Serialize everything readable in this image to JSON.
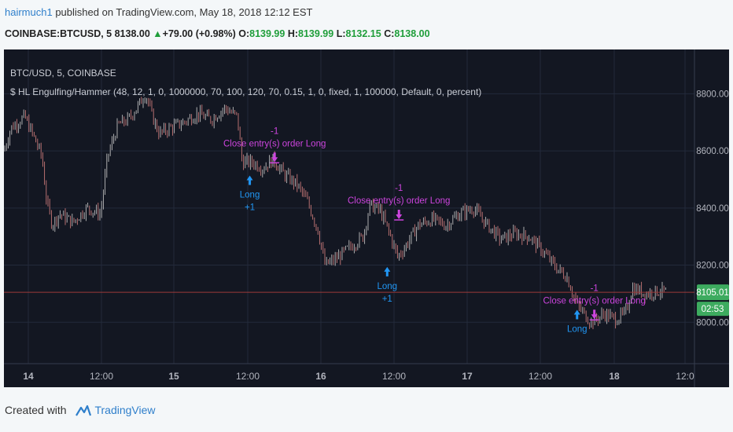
{
  "header": {
    "user": "hairmuch1",
    "published_text": "published on TradingView.com, May 18, 2018 12:12 EST"
  },
  "symbol_bar": {
    "symbol": "COINBASE:BTCUSD, 5",
    "last": "8138.00",
    "change": "+79.00 (+0.98%)",
    "o_label": "O:",
    "o": "8139.99",
    "h_label": "H:",
    "h": "8139.99",
    "l_label": "L:",
    "l": "8132.15",
    "c_label": "C:",
    "c": "8138.00"
  },
  "chart_info": {
    "title": "BTC/USD, 5, COINBASE",
    "indicator": "$ HL Engulfing/Hammer (48, 12, 1, 0, 1000000, 70, 100, 120, 70, 0.15, 1, 0, fixed, 1, 100000, Default, 0, percent)"
  },
  "price_tags": {
    "last": "8105.01",
    "countdown": "02:53"
  },
  "footer": {
    "created_with": "Created with",
    "brand": "TradingView"
  },
  "colors": {
    "background": "#131722",
    "grid": "#232a3b",
    "up": "#bdbdbd",
    "down": "#c87878",
    "long_marker": "#2196f3",
    "close_marker": "#cc44dd",
    "price_line": "#9c3a3a",
    "last_price_tag": "#3dab5f"
  },
  "chart_data": {
    "type": "candlestick",
    "title": "BTC/USD, 5, COINBASE",
    "y_ticks": [
      8000,
      8200,
      8400,
      8600,
      8800
    ],
    "y_tick_labels": [
      "8000.00",
      "8200.00",
      "8400.00",
      "8600.00",
      "8800.00"
    ],
    "ylim": [
      7855,
      8955
    ],
    "x_tick_labels": [
      "14",
      "12:00",
      "15",
      "12:00",
      "16",
      "12:00",
      "17",
      "12:00",
      "18",
      "12:0"
    ],
    "grid": true,
    "price_line": 8105.01,
    "path": [
      {
        "t": 0.0,
        "p": 8600
      },
      {
        "t": 0.01,
        "p": 8680
      },
      {
        "t": 0.03,
        "p": 8720
      },
      {
        "t": 0.045,
        "p": 8640
      },
      {
        "t": 0.055,
        "p": 8580
      },
      {
        "t": 0.062,
        "p": 8420
      },
      {
        "t": 0.07,
        "p": 8340
      },
      {
        "t": 0.08,
        "p": 8380
      },
      {
        "t": 0.1,
        "p": 8350
      },
      {
        "t": 0.12,
        "p": 8400
      },
      {
        "t": 0.14,
        "p": 8380
      },
      {
        "t": 0.15,
        "p": 8580
      },
      {
        "t": 0.165,
        "p": 8690
      },
      {
        "t": 0.18,
        "p": 8710
      },
      {
        "t": 0.195,
        "p": 8760
      },
      {
        "t": 0.205,
        "p": 8800
      },
      {
        "t": 0.215,
        "p": 8720
      },
      {
        "t": 0.225,
        "p": 8660
      },
      {
        "t": 0.24,
        "p": 8680
      },
      {
        "t": 0.26,
        "p": 8700
      },
      {
        "t": 0.28,
        "p": 8730
      },
      {
        "t": 0.3,
        "p": 8710
      },
      {
        "t": 0.32,
        "p": 8750
      },
      {
        "t": 0.338,
        "p": 8720
      },
      {
        "t": 0.345,
        "p": 8560
      },
      {
        "t": 0.36,
        "p": 8560
      },
      {
        "t": 0.375,
        "p": 8540
      },
      {
        "t": 0.39,
        "p": 8570
      },
      {
        "t": 0.405,
        "p": 8520
      },
      {
        "t": 0.425,
        "p": 8480
      },
      {
        "t": 0.44,
        "p": 8420
      },
      {
        "t": 0.455,
        "p": 8320
      },
      {
        "t": 0.465,
        "p": 8200
      },
      {
        "t": 0.48,
        "p": 8220
      },
      {
        "t": 0.5,
        "p": 8260
      },
      {
        "t": 0.52,
        "p": 8300
      },
      {
        "t": 0.53,
        "p": 8410
      },
      {
        "t": 0.545,
        "p": 8390
      },
      {
        "t": 0.56,
        "p": 8300
      },
      {
        "t": 0.57,
        "p": 8230
      },
      {
        "t": 0.58,
        "p": 8260
      },
      {
        "t": 0.6,
        "p": 8340
      },
      {
        "t": 0.62,
        "p": 8360
      },
      {
        "t": 0.64,
        "p": 8340
      },
      {
        "t": 0.66,
        "p": 8380
      },
      {
        "t": 0.68,
        "p": 8400
      },
      {
        "t": 0.7,
        "p": 8340
      },
      {
        "t": 0.72,
        "p": 8290
      },
      {
        "t": 0.74,
        "p": 8310
      },
      {
        "t": 0.76,
        "p": 8300
      },
      {
        "t": 0.78,
        "p": 8250
      },
      {
        "t": 0.8,
        "p": 8190
      },
      {
        "t": 0.815,
        "p": 8160
      },
      {
        "t": 0.83,
        "p": 8060
      },
      {
        "t": 0.85,
        "p": 8000
      },
      {
        "t": 0.87,
        "p": 8030
      },
      {
        "t": 0.885,
        "p": 8010
      },
      {
        "t": 0.9,
        "p": 8030
      },
      {
        "t": 0.91,
        "p": 8120
      },
      {
        "t": 0.93,
        "p": 8100
      },
      {
        "t": 0.95,
        "p": 8110
      },
      {
        "t": 0.96,
        "p": 8105
      }
    ],
    "signals": [
      {
        "type": "long",
        "t": 0.356,
        "price": 8530,
        "label": "Long",
        "qty": "+1"
      },
      {
        "type": "close",
        "t": 0.392,
        "price": 8550,
        "label": "Close entry(s) order Long",
        "qty": "-1"
      },
      {
        "type": "long",
        "t": 0.555,
        "price": 8210,
        "label": "Long",
        "qty": "+1"
      },
      {
        "type": "close",
        "t": 0.572,
        "price": 8350,
        "label": "Close entry(s) order Long",
        "qty": "-1"
      },
      {
        "type": "long",
        "t": 0.83,
        "price": 8060,
        "label": "Long",
        "qty": ""
      },
      {
        "type": "close",
        "t": 0.855,
        "price": 8000,
        "label": "Close entry(s) order Long",
        "qty": "-1"
      }
    ]
  }
}
